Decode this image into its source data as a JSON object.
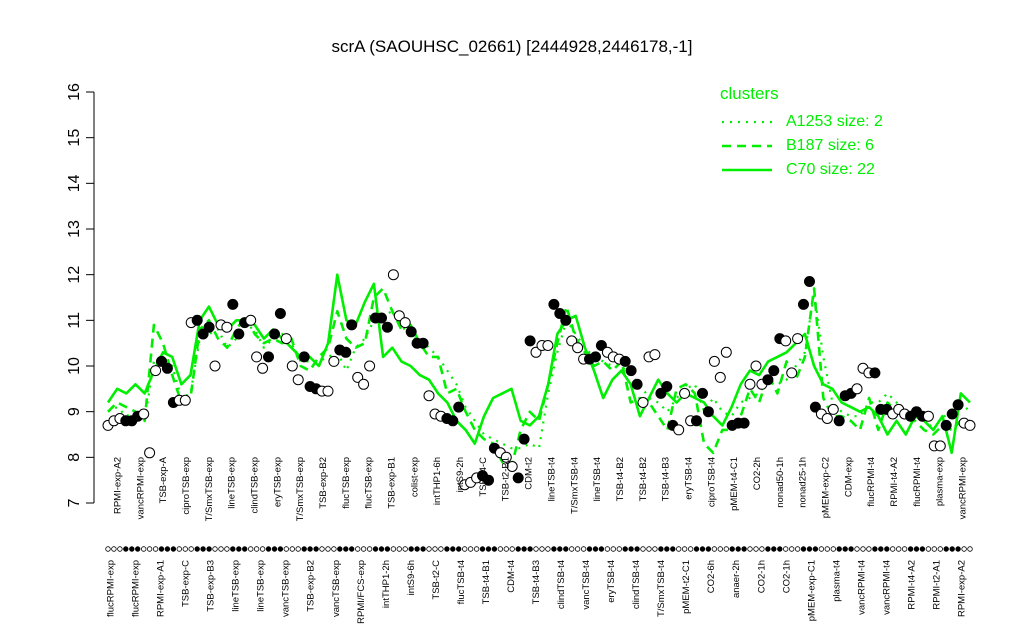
{
  "chart_data": {
    "type": "line",
    "title": "scrA (SAOUHSC_02661) [2444928,2446178,-1]",
    "xlabel": "",
    "ylabel": "",
    "ylim": [
      7,
      16
    ],
    "yticks": [
      7,
      8,
      9,
      10,
      11,
      12,
      13,
      14,
      15,
      16
    ],
    "grid": false,
    "legend": {
      "title": "clusters",
      "placement": "top-right",
      "entries": [
        {
          "label": "A1253 size: 2",
          "style": "dotted"
        },
        {
          "label": "B187 size: 6",
          "style": "dashed"
        },
        {
          "label": "C70 size: 22",
          "style": "solid"
        }
      ]
    },
    "line_color": "#00ee00",
    "x_labels_row1": [
      "RPMI-exp-A2",
      "vancRPMI-exp",
      "TSB-exp-A",
      "ciproTSB-exp",
      "T/SmxTSB-exp",
      "lineTSB-exp",
      "clindTSB-exp",
      "eryTSB-exp",
      "T/SmxTSB-exp",
      "TSB-exp-B2",
      "flucTSB-exp",
      "flucTSB-exp",
      "TSB-exp-B1",
      "colist-exp",
      "intTHP1-6h",
      "intS9-2h",
      "TSB-t4-C",
      "TSB-t2-B1",
      "CDM-t2",
      "lineTSB-t4",
      "T/SmxTSB-t4",
      "lineTSB-t4",
      "TSB-t4-B2",
      "TSB-t4-B2",
      "TSB-t4-B3",
      "eryTSB-t4",
      "ciproTSB-t4",
      "pMEM-t4-C1",
      "CO2-2h",
      "nonad50-1h",
      "nonad25-1h",
      "pMEM-exp-C2",
      "CDM-exp",
      "flucRPMI-t4",
      "RPMI-t4-A2",
      "flucRPMI-t4",
      "plasma-exp",
      "vancRPMI-exp"
    ],
    "x_labels_row2": [
      "flucRPMI-exp",
      "flucRPMI-exp",
      "RPMI-exp-A1",
      "TSB-exp-C",
      "TSB-exp-B3",
      "lineTSB-exp",
      "lineTSB-exp",
      "vancTSB-exp",
      "TSB-exp-B2",
      "vancTSB-exp",
      "RPMI/FCS-exp",
      "intTHP1-2h",
      "intS9-6h",
      "TSB-t2-C",
      "flucTSB-t4",
      "TSB-t4-B1",
      "CDM-t4",
      "TSB-t4-B3",
      "clindTSB-t4",
      "vancTSB-t4",
      "eryTSB-t4",
      "clindTSB-t4",
      "T/SmxTSB-t4",
      "pMEM-t2-C1",
      "CO2-6h",
      "anaer-2h",
      "CO2-1h",
      "CO2-1h",
      "pMEM-exp-C1",
      "plasma-t4",
      "vancRPMI-t4",
      "vancRPMI-t4",
      "RPMI-t4-A2",
      "RPMI-t2-A1",
      "RPMI-exp-A2"
    ],
    "series": [
      {
        "name": "",
        "style": "points",
        "marker": "circle",
        "values": [
          8.7,
          8.8,
          8.85,
          8.8,
          8.8,
          8.9,
          8.95,
          8.1,
          9.9,
          10.1,
          9.95,
          9.2,
          9.25,
          9.25,
          10.95,
          11.0,
          10.7,
          10.85,
          10.0,
          10.9,
          10.85,
          11.35,
          10.7,
          10.95,
          11.0,
          10.2,
          9.95,
          10.2,
          10.7,
          11.15,
          10.6,
          10.0,
          9.7,
          10.2,
          9.55,
          9.5,
          9.45,
          9.45,
          10.1,
          10.35,
          10.3,
          10.9,
          9.75,
          9.6,
          10.0,
          11.05,
          11.05,
          10.85,
          12.0,
          11.1,
          10.95,
          10.75,
          10.5,
          10.5,
          9.35,
          8.95,
          8.9,
          8.85,
          8.8,
          9.1,
          7.4,
          7.45,
          7.55,
          7.6,
          7.5,
          8.2,
          8.1,
          8.0,
          7.8,
          7.55,
          8.4,
          10.55,
          10.3,
          10.45,
          10.45,
          11.35,
          11.15,
          11.0,
          10.55,
          10.4,
          10.15,
          10.15,
          10.2,
          10.45,
          10.3,
          10.2,
          10.15,
          10.1,
          9.9,
          9.6,
          9.2,
          10.2,
          10.25,
          9.4,
          9.55,
          8.7,
          8.6,
          9.4,
          8.8,
          8.8,
          9.4,
          9.0,
          10.1,
          9.75,
          10.3,
          8.7,
          8.75,
          8.75,
          9.6,
          10.0,
          9.6,
          9.7,
          9.9,
          10.6,
          10.55,
          9.85,
          10.6,
          11.35,
          11.85,
          9.1,
          8.95,
          8.85,
          9.05,
          8.8,
          9.35,
          9.4,
          9.5,
          9.95,
          9.85,
          9.85,
          9.05,
          9.05,
          8.95,
          9.05,
          8.95,
          8.9,
          9.0,
          8.9,
          8.9,
          8.25,
          8.25,
          8.7,
          8.95,
          9.15,
          8.75,
          8.7
        ]
      },
      {
        "name": "A1253 size: 2",
        "style": "dotted",
        "values": [
          9.0,
          9.1,
          8.9,
          9.0,
          8.8,
          10.1,
          10.2,
          10.0,
          9.3,
          9.4,
          10.6,
          10.7,
          10.8,
          10.4,
          10.6,
          10.9,
          10.8,
          10.4,
          10.6,
          10.7,
          10.5,
          10.1,
          10.1,
          10.1,
          10.2,
          10.3,
          9.9,
          10.4,
          10.6,
          11.0,
          11.1,
          11.2,
          10.9,
          10.6,
          10.6,
          10.4,
          10.2,
          9.9,
          9.6,
          9.1,
          8.8,
          8.5,
          8.4,
          8.3,
          8.2,
          8.2,
          8.3,
          8.2,
          9.4,
          10.3,
          11.0,
          10.7,
          10.4,
          10.2,
          10.1,
          10.0,
          10.0,
          9.8,
          9.6,
          9.3,
          9.2,
          9.0,
          9.3,
          9.5,
          9.6,
          9.0,
          9.3,
          9.0,
          8.9,
          9.2,
          9.3,
          9.4,
          9.7,
          9.6,
          9.7,
          10.0,
          10.3,
          11.6,
          10.2,
          9.2,
          9.0,
          8.9,
          8.9,
          9.2,
          9.2,
          9.4,
          9.2,
          8.9,
          9.0,
          8.9,
          8.6,
          8.9,
          8.9,
          9.2,
          9.0
        ]
      },
      {
        "name": "B187 size: 6",
        "style": "dashed",
        "values": [
          9.0,
          9.2,
          9.1,
          9.0,
          8.8,
          10.9,
          10.5,
          9.8,
          9.2,
          9.3,
          10.8,
          11.0,
          10.6,
          10.4,
          10.8,
          11.1,
          10.7,
          10.5,
          10.6,
          10.5,
          10.6,
          10.0,
          9.9,
          10.2,
          10.4,
          11.2,
          10.6,
          10.4,
          10.5,
          11.5,
          11.7,
          11.2,
          10.8,
          10.9,
          10.5,
          10.2,
          10.2,
          9.4,
          9.5,
          9.0,
          8.6,
          8.4,
          8.3,
          7.9,
          7.8,
          8.6,
          9.0,
          8.8,
          9.6,
          10.5,
          11.3,
          10.6,
          10.3,
          10.0,
          10.1,
          9.9,
          10.1,
          9.2,
          9.3,
          9.2,
          8.9,
          8.6,
          9.5,
          9.6,
          9.4,
          8.3,
          8.1,
          8.6,
          8.6,
          8.9,
          9.5,
          9.2,
          9.8,
          9.4,
          10.1,
          9.7,
          10.2,
          11.7,
          9.3,
          8.9,
          8.9,
          8.8,
          8.6,
          9.3,
          8.6,
          9.2,
          9.0,
          8.9,
          8.8,
          8.6,
          8.5,
          8.7,
          8.6,
          8.8,
          8.8
        ]
      },
      {
        "name": "C70 size: 22",
        "style": "solid",
        "values": [
          9.2,
          9.5,
          9.4,
          9.6,
          9.4,
          9.9,
          10.3,
          10.2,
          9.6,
          9.8,
          11.0,
          11.3,
          10.9,
          10.8,
          11.0,
          11.0,
          10.9,
          10.6,
          10.8,
          10.6,
          10.4,
          10.2,
          10.2,
          10.0,
          10.5,
          12.0,
          11.0,
          10.9,
          11.4,
          11.8,
          10.2,
          10.4,
          10.1,
          10.0,
          9.8,
          9.7,
          9.4,
          9.2,
          8.8,
          8.6,
          8.3,
          8.9,
          9.3,
          9.4,
          9.5,
          8.8,
          8.7,
          8.9,
          9.6,
          10.7,
          11.0,
          11.1,
          10.4,
          9.9,
          9.3,
          9.7,
          9.9,
          9.6,
          8.9,
          9.3,
          9.7,
          9.4,
          9.2,
          9.4,
          9.3,
          9.2,
          8.9,
          8.7,
          9.1,
          9.6,
          9.9,
          9.8,
          10.1,
          10.2,
          10.3,
          10.5,
          10.7,
          10.0,
          9.6,
          9.5,
          9.2,
          9.1,
          9.0,
          9.1,
          8.9,
          8.5,
          8.8,
          8.5,
          8.9,
          8.8,
          8.6,
          8.9,
          8.1,
          9.4,
          9.2
        ]
      }
    ]
  }
}
